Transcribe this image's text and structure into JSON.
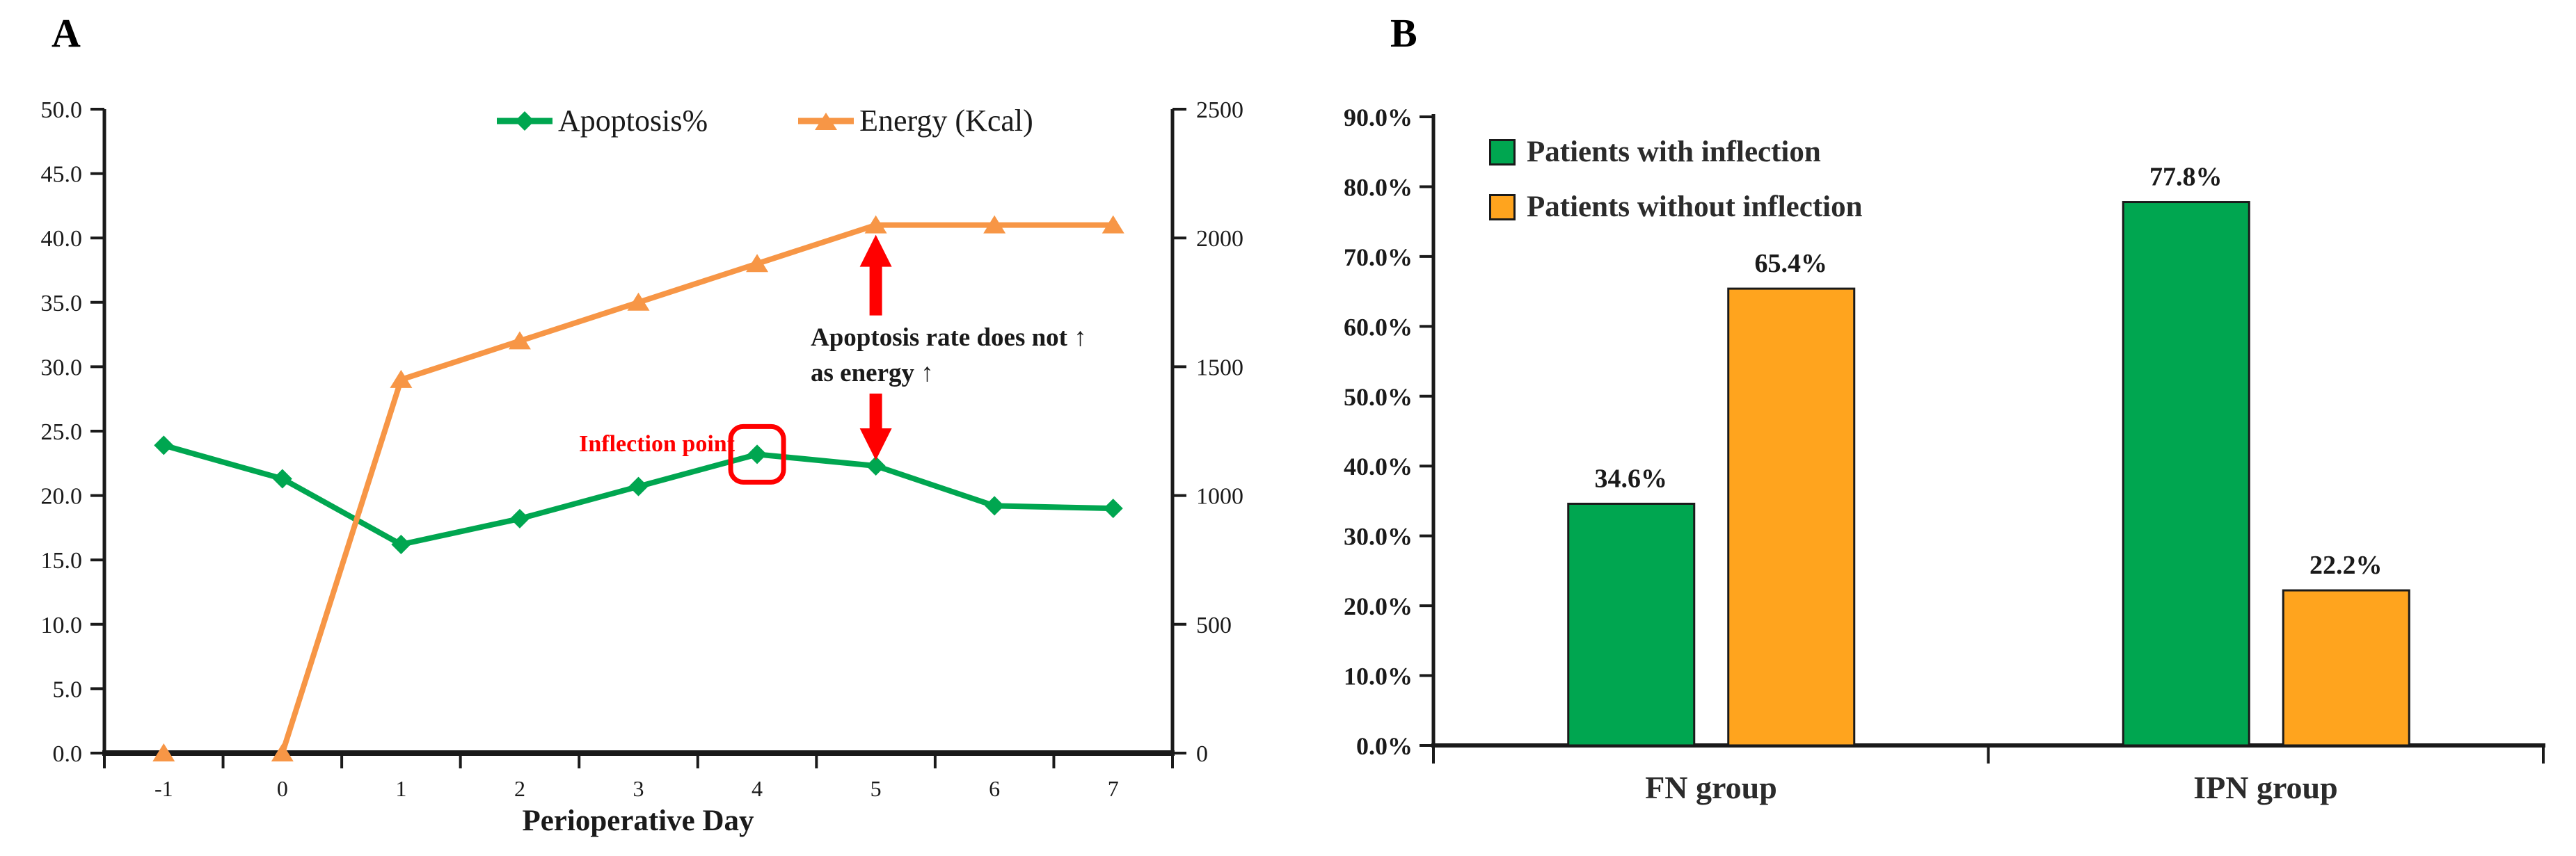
{
  "figure_labels": {
    "panel_a": "A",
    "panel_b": "B"
  },
  "colors": {
    "apoptosis_green": "#00a650",
    "energy_line_orange": "#f79646",
    "bar_orange": "#ffa41e",
    "annotation_red": "#ff0000",
    "axis_black": "#1a1a1a"
  },
  "chart_data": [
    {
      "type": "line",
      "panel": "A",
      "xlabel": "Perioperative Day",
      "x_tick_labels": [
        "-1",
        "0",
        "1",
        "2",
        "3",
        "4",
        "5",
        "6",
        "7"
      ],
      "left_axis": {
        "min": 0,
        "max": 50,
        "tick_labels": [
          "0.0",
          "5.0",
          "10.0",
          "15.0",
          "20.0",
          "25.0",
          "30.0",
          "35.0",
          "40.0",
          "45.0",
          "50.0"
        ]
      },
      "right_axis": {
        "min": 0,
        "max": 2500,
        "tick_labels": [
          "0",
          "500",
          "1000",
          "1500",
          "2000",
          "2500"
        ]
      },
      "legend_position": "top-center",
      "series": [
        {
          "name": "Apoptosis%",
          "axis": "left",
          "color": "#00a650",
          "marker": "diamond",
          "values": [
            23.9,
            21.3,
            16.2,
            18.2,
            20.7,
            23.2,
            22.3,
            19.2,
            19.0
          ]
        },
        {
          "name": "Energy (Kcal)",
          "axis": "right",
          "color": "#f79646",
          "marker": "triangle",
          "values": [
            0,
            0,
            1450,
            1600,
            1750,
            1900,
            2050,
            2050,
            2050
          ]
        }
      ],
      "annotations": {
        "inflection_label": "Inflection point",
        "inflection_day_index": 5,
        "note_line1": "Apoptosis rate does not ↑",
        "note_line2": "as energy ↑",
        "arrow_day_index": 6,
        "accent_color": "#ff0000"
      }
    },
    {
      "type": "bar",
      "panel": "B",
      "categories": [
        "FN group",
        "IPN group"
      ],
      "y_tick_labels": [
        "0.0%",
        "10.0%",
        "20.0%",
        "30.0%",
        "40.0%",
        "50.0%",
        "60.0%",
        "70.0%",
        "80.0%",
        "90.0%"
      ],
      "ylim": [
        0,
        90
      ],
      "legend_position": "top-left",
      "series": [
        {
          "name": "Patients with inflection",
          "color": "#00a650",
          "values": [
            34.6,
            77.8
          ],
          "data_labels": [
            "34.6%",
            "77.8%"
          ]
        },
        {
          "name": "Patients without inflection",
          "color": "#ffa41e",
          "values": [
            65.4,
            22.2
          ],
          "data_labels": [
            "65.4%",
            "22.2%"
          ]
        }
      ]
    }
  ]
}
